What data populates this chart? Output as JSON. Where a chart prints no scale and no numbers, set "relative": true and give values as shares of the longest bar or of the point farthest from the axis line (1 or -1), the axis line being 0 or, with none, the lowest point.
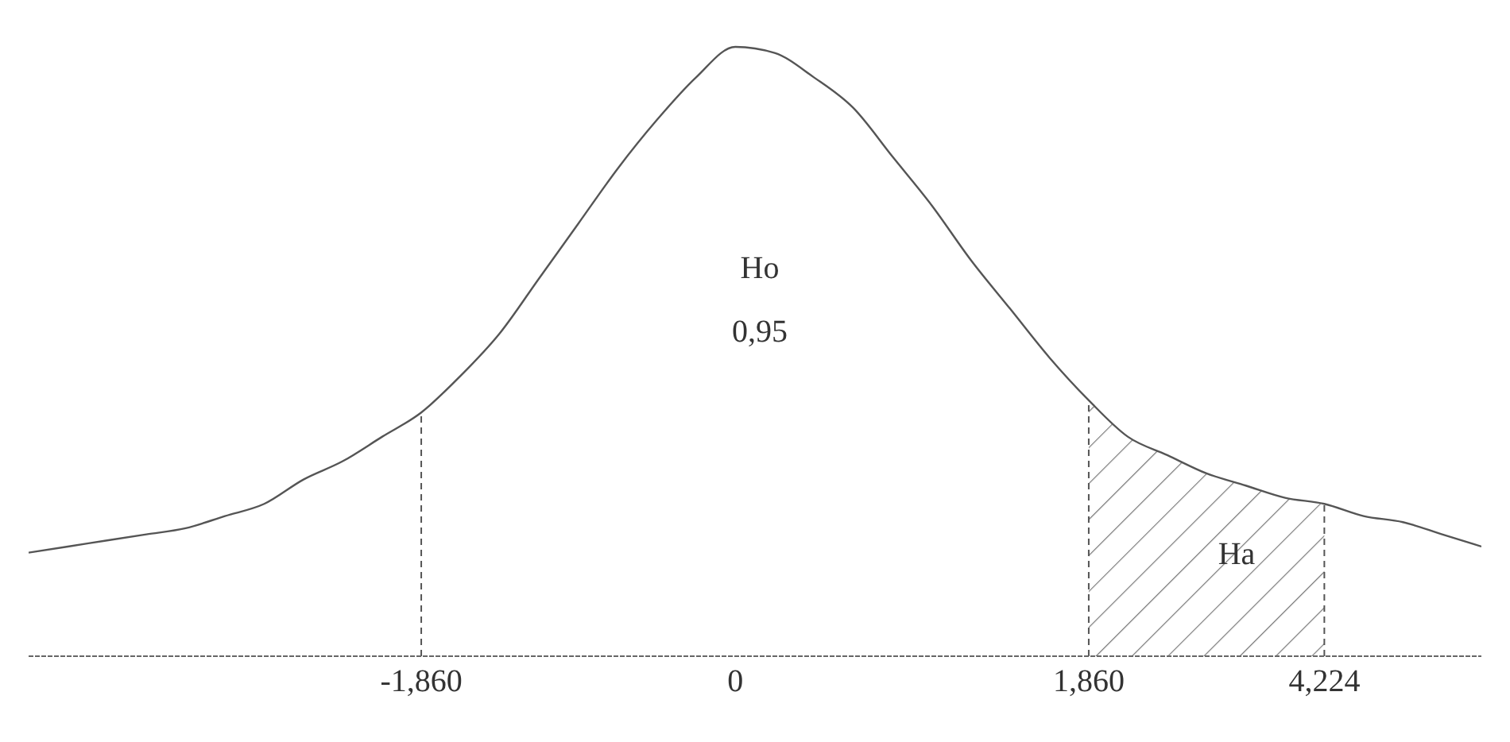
{
  "chart_data": {
    "type": "line",
    "relative": true,
    "categories": [
      null,
      null,
      null,
      null,
      null,
      null,
      null,
      null,
      null,
      null,
      "-1,860",
      null,
      null,
      null,
      null,
      null,
      null,
      null,
      "0",
      null,
      null,
      null,
      null,
      null,
      null,
      null,
      null,
      "1,860",
      null,
      null,
      null,
      null,
      null,
      "4,224",
      null,
      null,
      null,
      null
    ],
    "series": [
      {
        "color": "#555555",
        "values": [
          0.17,
          0.18,
          0.19,
          0.2,
          0.21,
          0.23,
          0.25,
          0.29,
          0.32,
          0.36,
          0.4,
          0.46,
          0.53,
          0.62,
          0.71,
          0.8,
          0.88,
          0.95,
          1,
          0.99,
          0.95,
          0.9,
          0.82,
          0.74,
          0.65,
          0.57,
          0.49,
          0.42,
          0.36,
          0.33,
          0.3,
          0.28,
          0.26,
          0.25,
          0.23,
          0.22,
          0.2,
          0.18
        ]
      },
      {
        "type": "area",
        "color": "#777777",
        "values": [
          null,
          null,
          null,
          null,
          null,
          null,
          null,
          null,
          null,
          null,
          null,
          null,
          null,
          null,
          null,
          null,
          null,
          null,
          null,
          null,
          null,
          null,
          null,
          null,
          null,
          null,
          null,
          0.42,
          0.36,
          0.33,
          0.3,
          0.28,
          0.26,
          0.25,
          null,
          null,
          null,
          null
        ]
      }
    ],
    "ref_lines": [
      {
        "axis": "x",
        "value": "-1,860",
        "line_style": "dashed"
      },
      {
        "axis": "x",
        "value": "1,860",
        "line_style": "dashed"
      },
      {
        "axis": "x",
        "value": "4,224",
        "line_style": "dashed"
      }
    ],
    "annotations": [
      "Ho",
      "0,95",
      "Ha"
    ],
    "marker": "none"
  }
}
